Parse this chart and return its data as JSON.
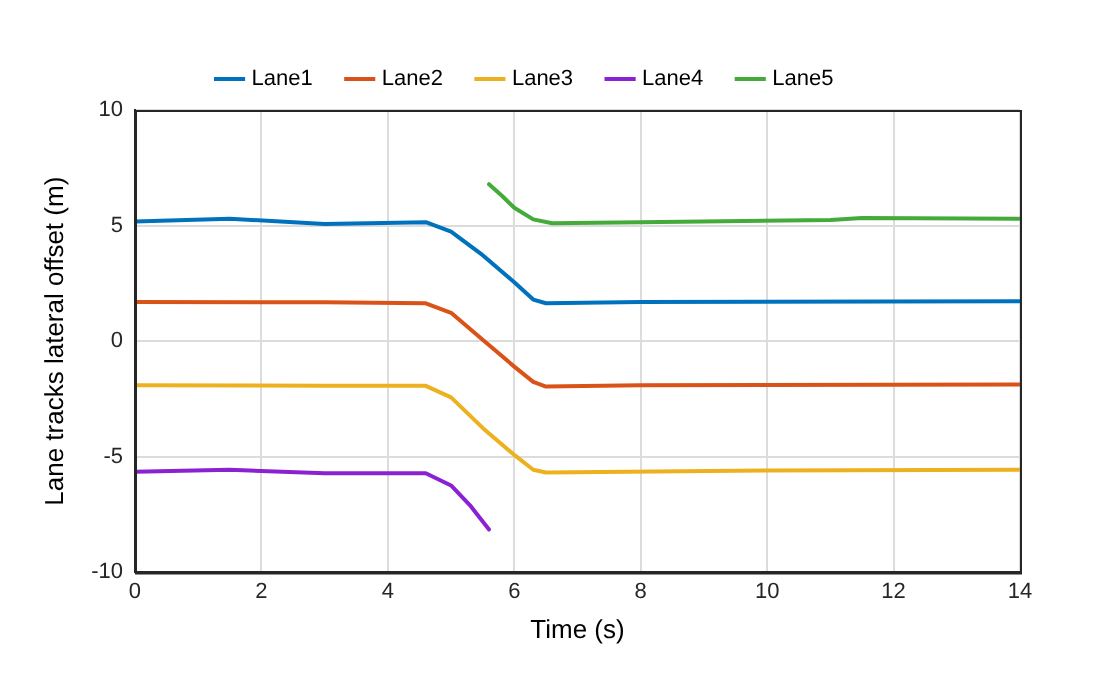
{
  "chart_data": {
    "type": "line",
    "xlabel": "Time (s)",
    "ylabel": "Lane tracks lateral offset (m)",
    "xlim": [
      0,
      14
    ],
    "xticks": [
      0,
      2,
      4,
      6,
      8,
      10,
      12,
      14
    ],
    "ylim": [
      -10,
      10
    ],
    "yticks": [
      -10,
      -5,
      0,
      5,
      10
    ],
    "grid": true,
    "legend": "top",
    "marker": "none",
    "line_style": "solid",
    "series": [
      {
        "name": "Lane1",
        "color": "#0072bd",
        "x": [
          0,
          1.5,
          3,
          4.6,
          5,
          5.5,
          6,
          6.3,
          6.5,
          8,
          14
        ],
        "values": [
          5.18,
          5.3,
          5.07,
          5.15,
          4.74,
          3.72,
          2.55,
          1.8,
          1.64,
          1.7,
          1.73
        ]
      },
      {
        "name": "Lane2",
        "color": "#d95319",
        "x": [
          0,
          3,
          4.6,
          5,
          5.5,
          6,
          6.3,
          6.5,
          8,
          14
        ],
        "values": [
          1.7,
          1.68,
          1.64,
          1.23,
          0.06,
          -1.1,
          -1.76,
          -1.96,
          -1.9,
          -1.87
        ]
      },
      {
        "name": "Lane3",
        "color": "#edb120",
        "x": [
          0,
          3,
          4.6,
          5,
          5.5,
          6,
          6.3,
          6.5,
          10,
          14
        ],
        "values": [
          -1.9,
          -1.93,
          -1.93,
          -2.43,
          -3.75,
          -4.92,
          -5.56,
          -5.68,
          -5.59,
          -5.56
        ]
      },
      {
        "name": "Lane4",
        "color": "#8a22d4",
        "x": [
          0,
          1.5,
          3,
          4.6,
          5,
          5.3,
          5.6
        ],
        "values": [
          -5.65,
          -5.56,
          -5.71,
          -5.71,
          -6.24,
          -7.1,
          -8.14
        ]
      },
      {
        "name": "Lane5",
        "color": "#44aa3a",
        "x": [
          5.6,
          5.8,
          6,
          6.3,
          6.6,
          8,
          11,
          11.5,
          14
        ],
        "values": [
          6.79,
          6.3,
          5.77,
          5.27,
          5.1,
          5.15,
          5.24,
          5.33,
          5.3
        ]
      }
    ]
  }
}
